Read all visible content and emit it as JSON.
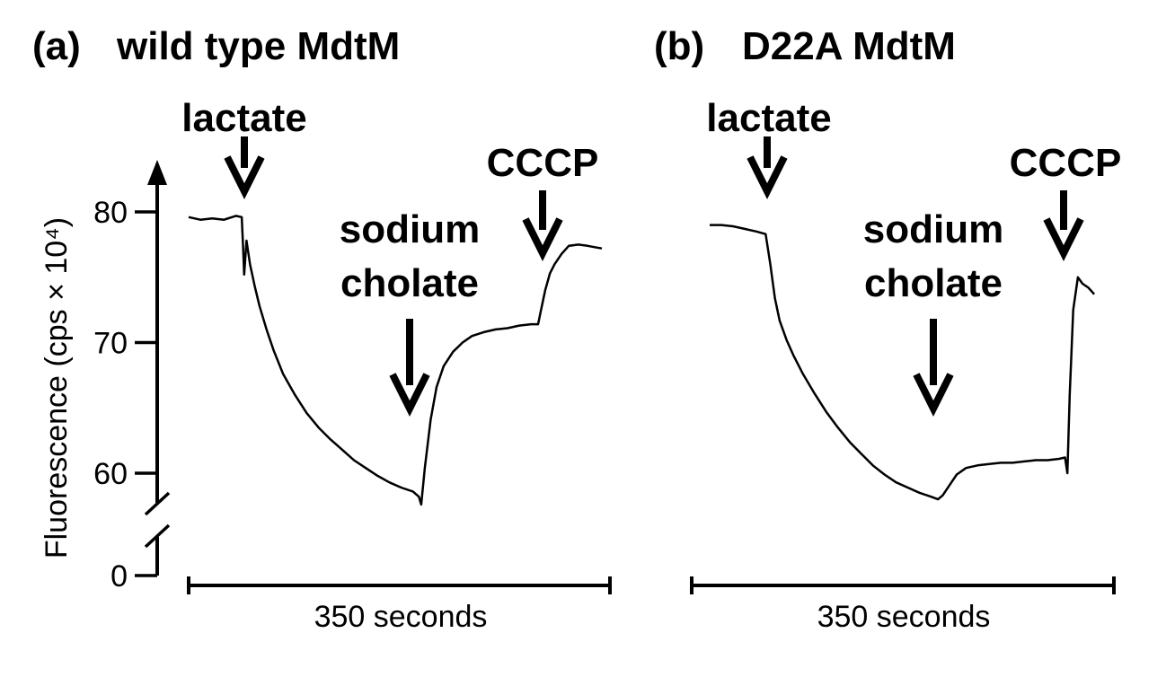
{
  "chart_data": [
    {
      "type": "line",
      "panel_label": "(a)",
      "title": "wild type MdtM",
      "ylabel": "Fluorescence (cps × 10⁴)",
      "yticks": [
        "80",
        "70",
        "60",
        "0"
      ],
      "ylim": [
        56,
        81
      ],
      "axis_break": true,
      "time_scale_label": "350 seconds",
      "time_scale_seconds": 350,
      "annotations": [
        {
          "label": "lactate",
          "t": 45
        },
        {
          "label": "sodium cholate",
          "t": 190
        },
        {
          "label": "CCCP",
          "t": 300
        }
      ],
      "series": [
        {
          "x": [
            0,
            10,
            20,
            30,
            40,
            45,
            46,
            47,
            49,
            52,
            56,
            60,
            66,
            72,
            80,
            90,
            100,
            110,
            120,
            130,
            140,
            150,
            160,
            170,
            180,
            190,
            195,
            197,
            200,
            205,
            210,
            216,
            224,
            232,
            240,
            250,
            260,
            270,
            280,
            290,
            296,
            298,
            302,
            306,
            310,
            316,
            322,
            330,
            338,
            344,
            350
          ],
          "y": [
            79.6,
            79.4,
            79.5,
            79.4,
            79.7,
            79.6,
            77.5,
            75.2,
            77.8,
            76.0,
            74.3,
            72.8,
            71.0,
            69.4,
            67.6,
            66.0,
            64.6,
            63.5,
            62.6,
            61.8,
            61.0,
            60.4,
            59.8,
            59.3,
            58.9,
            58.6,
            58.2,
            57.6,
            60.4,
            64.1,
            66.6,
            68.2,
            69.3,
            70.0,
            70.5,
            70.8,
            71.0,
            71.1,
            71.3,
            71.4,
            71.4,
            72.3,
            74.0,
            75.3,
            76.0,
            76.8,
            77.4,
            77.5,
            77.4,
            77.3,
            77.2
          ]
        }
      ]
    },
    {
      "type": "line",
      "panel_label": "(b)",
      "title": "D22A MdtM",
      "time_scale_label": "350 seconds",
      "time_scale_seconds": 350,
      "annotations": [
        {
          "label": "lactate",
          "t": 48
        },
        {
          "label": "sodium cholate",
          "t": 202
        },
        {
          "label": "CCCP",
          "t": 310
        }
      ],
      "series": [
        {
          "x": [
            0,
            10,
            20,
            30,
            40,
            48,
            52,
            56,
            60,
            66,
            72,
            80,
            90,
            100,
            110,
            120,
            130,
            140,
            150,
            160,
            170,
            180,
            190,
            196,
            200,
            206,
            212,
            220,
            230,
            240,
            250,
            260,
            270,
            280,
            290,
            300,
            305,
            307,
            309,
            312,
            316,
            320,
            325,
            330
          ],
          "y": [
            79.0,
            79.0,
            78.9,
            78.7,
            78.5,
            78.3,
            76.0,
            73.4,
            71.7,
            70.2,
            69.0,
            67.6,
            66.1,
            64.7,
            63.5,
            62.4,
            61.5,
            60.6,
            59.9,
            59.3,
            58.9,
            58.5,
            58.2,
            58.0,
            58.3,
            59.1,
            59.9,
            60.4,
            60.6,
            60.7,
            60.8,
            60.8,
            60.9,
            61.0,
            61.0,
            61.1,
            61.2,
            60.0,
            66.0,
            72.5,
            75.0,
            74.5,
            74.2,
            73.7
          ]
        }
      ]
    }
  ]
}
